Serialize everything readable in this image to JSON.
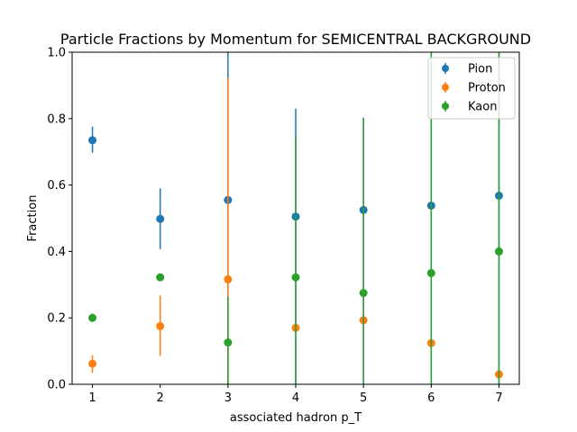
{
  "chart_data": {
    "type": "scatter",
    "title": "Particle Fractions by Momentum for SEMICENTRAL BACKGROUND",
    "xlabel": "associated hadron p_T",
    "ylabel": "Fraction",
    "xlim": [
      0.7,
      7.3
    ],
    "ylim": [
      0.0,
      1.0
    ],
    "xticks": [
      1,
      2,
      3,
      4,
      5,
      6,
      7
    ],
    "yticks": [
      "0.0",
      "0.2",
      "0.4",
      "0.6",
      "0.8",
      "1.0"
    ],
    "grid": false,
    "legend_position": "top-right",
    "x": [
      1,
      2,
      3,
      4,
      5,
      6,
      7
    ],
    "series": [
      {
        "name": "Pion",
        "color": "#1f77b4",
        "values": [
          0.735,
          0.498,
          0.555,
          0.505,
          0.525,
          0.538,
          0.568
        ],
        "err_low": [
          0.697,
          0.407,
          0.0,
          0.0,
          0.0,
          0.0,
          0.0
        ],
        "err_high": [
          0.776,
          0.59,
          1.0,
          0.83,
          0.803,
          1.0,
          1.0
        ]
      },
      {
        "name": "Proton",
        "color": "#ff7f0e",
        "values": [
          0.062,
          0.175,
          0.316,
          0.17,
          0.193,
          0.124,
          0.03
        ],
        "err_low": [
          0.035,
          0.085,
          0.0,
          0.0,
          0.0,
          0.0,
          0.0
        ],
        "err_high": [
          0.088,
          0.267,
          0.922,
          0.0,
          0.0,
          0.0,
          0.0
        ]
      },
      {
        "name": "Kaon",
        "color": "#2ca02c",
        "values": [
          0.2,
          0.322,
          0.126,
          0.322,
          0.275,
          0.335,
          0.4
        ],
        "err_low": [
          0.188,
          0.322,
          0.0,
          0.0,
          0.0,
          0.0,
          0.0
        ],
        "err_high": [
          0.213,
          0.322,
          0.264,
          0.745,
          0.8,
          1.0,
          1.0
        ]
      }
    ]
  }
}
